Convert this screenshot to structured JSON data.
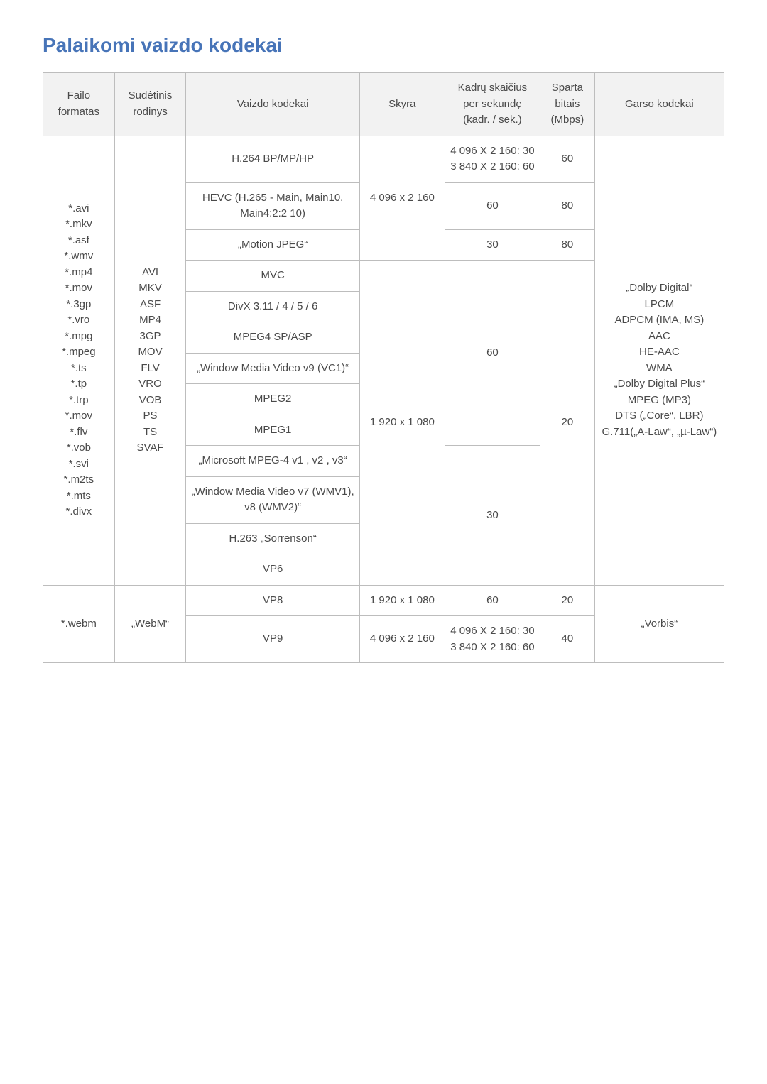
{
  "heading": "Palaikomi vaizdo kodekai",
  "columns": [
    "Failo\nformatas",
    "Sudėtinis\nrodinys",
    "Vaizdo kodekai",
    "Skyra",
    "Kadrų skaičius\nper sekundę\n(kadr. / sek.)",
    "Sparta\nbitais\n(Mbps)",
    "Garso kodekai"
  ],
  "group1": {
    "file_formats": "*.avi\n*.mkv\n*.asf\n*.wmv\n*.mp4\n*.mov\n*.3gp\n*.vro\n*.mpg\n*.mpeg\n*.ts\n*.tp\n*.trp\n*.mov\n*.flv\n*.vob\n*.svi\n*.m2ts\n*.mts\n*.divx",
    "containers": "AVI\nMKV\nASF\nMP4\n3GP\nMOV\nFLV\nVRO\nVOB\nPS\nTS\nSVAF",
    "audio": "„Dolby Digital“\nLPCM\nADPCM (IMA, MS)\nAAC\nHE-AAC\nWMA\n„Dolby Digital Plus“\nMPEG (MP3)\nDTS („Core“, LBR)\nG.711(„A-Law“, „µ-Law“)",
    "resolution_4k": "4 096 x 2 160",
    "resolution_fhd": "1 920 x 1 080",
    "codec_h264": "H.264 BP/MP/HP",
    "fps_h264": "4 096 X 2 160: 30\n3 840 X 2 160: 60",
    "bitrate_h264": "60",
    "codec_hevc": "HEVC (H.265 - Main, Main10, Main4:2:2 10)",
    "fps_hevc": "60",
    "bitrate_hevc": "80",
    "codec_mjpeg": "„Motion JPEG“",
    "fps_mjpeg": "30",
    "bitrate_mjpeg": "80",
    "codec_mvc": "MVC",
    "codec_divx": "DivX 3.11 / 4 / 5 / 6",
    "codec_mpeg4": "MPEG4 SP/ASP",
    "codec_wmv9": "„Window Media Video v9 (VC1)“",
    "codec_mpeg2": "MPEG2",
    "codec_mpeg1": "MPEG1",
    "fps_block2": "60",
    "bitrate_block2": "20",
    "codec_ms_mpeg4": "„Microsoft MPEG-4 v1 , v2 , v3“",
    "codec_wmv7": "„Window Media Video v7 (WMV1), v8 (WMV2)“",
    "codec_h263": "H.263 „Sorrenson“",
    "codec_vp6": "VP6",
    "fps_block3": "30"
  },
  "group2": {
    "file_format": "*.webm",
    "container": "„WebM“",
    "audio": "„Vorbis“",
    "codec_vp8": "VP8",
    "res_vp8": "1 920 x 1 080",
    "fps_vp8": "60",
    "bitrate_vp8": "20",
    "codec_vp9": "VP9",
    "res_vp9": "4 096 x 2 160",
    "fps_vp9": "4 096 X 2 160: 30\n3 840 X 2 160: 60",
    "bitrate_vp9": "40"
  }
}
